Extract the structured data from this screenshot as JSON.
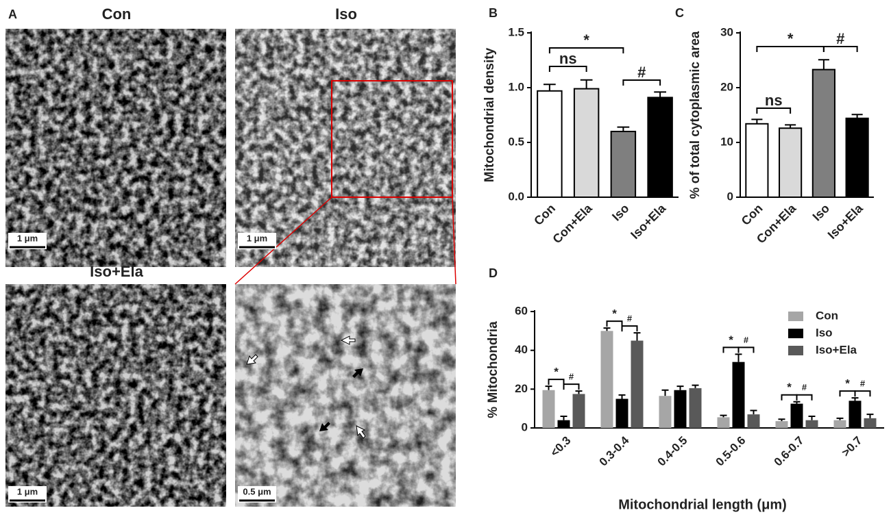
{
  "micrographs": {
    "label": "A",
    "images": [
      {
        "title": "Con",
        "scale": "1 μm"
      },
      {
        "title": "Iso",
        "scale": "1 μm"
      },
      {
        "title": "Iso+Ela",
        "scale": "1 μm"
      },
      {
        "scale": "0.5 μm"
      }
    ]
  },
  "chart_data": [
    {
      "type": "bar",
      "panel": "B",
      "ylabel": "Mitochondrial density",
      "categories": [
        "Con",
        "Con+Ela",
        "Iso",
        "Iso+Ela"
      ],
      "values": [
        0.97,
        0.99,
        0.6,
        0.91
      ],
      "errors": [
        0.06,
        0.08,
        0.04,
        0.05
      ],
      "colors": [
        "#ffffff",
        "#d9d9d9",
        "#7f7f7f",
        "#000000"
      ],
      "ylim": [
        0,
        1.5
      ],
      "yticks": [
        {
          "value": 0,
          "label": "0.0"
        },
        0.5,
        {
          "value": 1,
          "label": "1.0"
        },
        1.5
      ],
      "annotations": [
        "*",
        "ns",
        "#"
      ]
    },
    {
      "type": "bar",
      "panel": "C",
      "ylabel": "% of total cytoplasmic area",
      "categories": [
        "Con",
        "Con+Ela",
        "Iso",
        "Iso+Ela"
      ],
      "values": [
        13.4,
        12.6,
        23.3,
        14.4
      ],
      "errors": [
        0.8,
        0.6,
        1.8,
        0.7
      ],
      "colors": [
        "#ffffff",
        "#d9d9d9",
        "#7f7f7f",
        "#000000"
      ],
      "ylim": [
        0,
        30
      ],
      "yticks": [
        0,
        10,
        20,
        30
      ],
      "annotations": [
        "*",
        "ns",
        "#"
      ]
    },
    {
      "type": "grouped_bar",
      "panel": "D",
      "ylabel": "% Mitochondria",
      "xlabel": "Mitochondrial length (μm)",
      "categories": [
        "<0.3",
        "0.3-0.4",
        "0.4-0.5",
        "0.5-0.6",
        "0.6-0.7",
        ">0.7"
      ],
      "series": [
        {
          "name": "Con",
          "color": "#a6a6a6",
          "values": [
            19.5,
            50,
            16.5,
            5.5,
            3.5,
            4
          ],
          "errors": [
            2,
            1.5,
            3,
            1,
            1,
            1
          ]
        },
        {
          "name": "Iso",
          "color": "#000000",
          "values": [
            4,
            15,
            19.5,
            34,
            12.5,
            14
          ],
          "errors": [
            2,
            2,
            2,
            4,
            1,
            1.5
          ]
        },
        {
          "name": "Iso+Ela",
          "color": "#595959",
          "values": [
            17.5,
            45,
            20.5,
            7,
            4,
            5
          ],
          "errors": [
            1.5,
            4,
            1.5,
            2,
            2,
            2
          ]
        }
      ],
      "ylim": [
        0,
        60
      ],
      "yticks": [
        0,
        20,
        40,
        60
      ],
      "annotations": [
        "*",
        "#",
        "*",
        "#",
        "*",
        "#",
        "*",
        "#",
        "*",
        "#"
      ]
    }
  ]
}
